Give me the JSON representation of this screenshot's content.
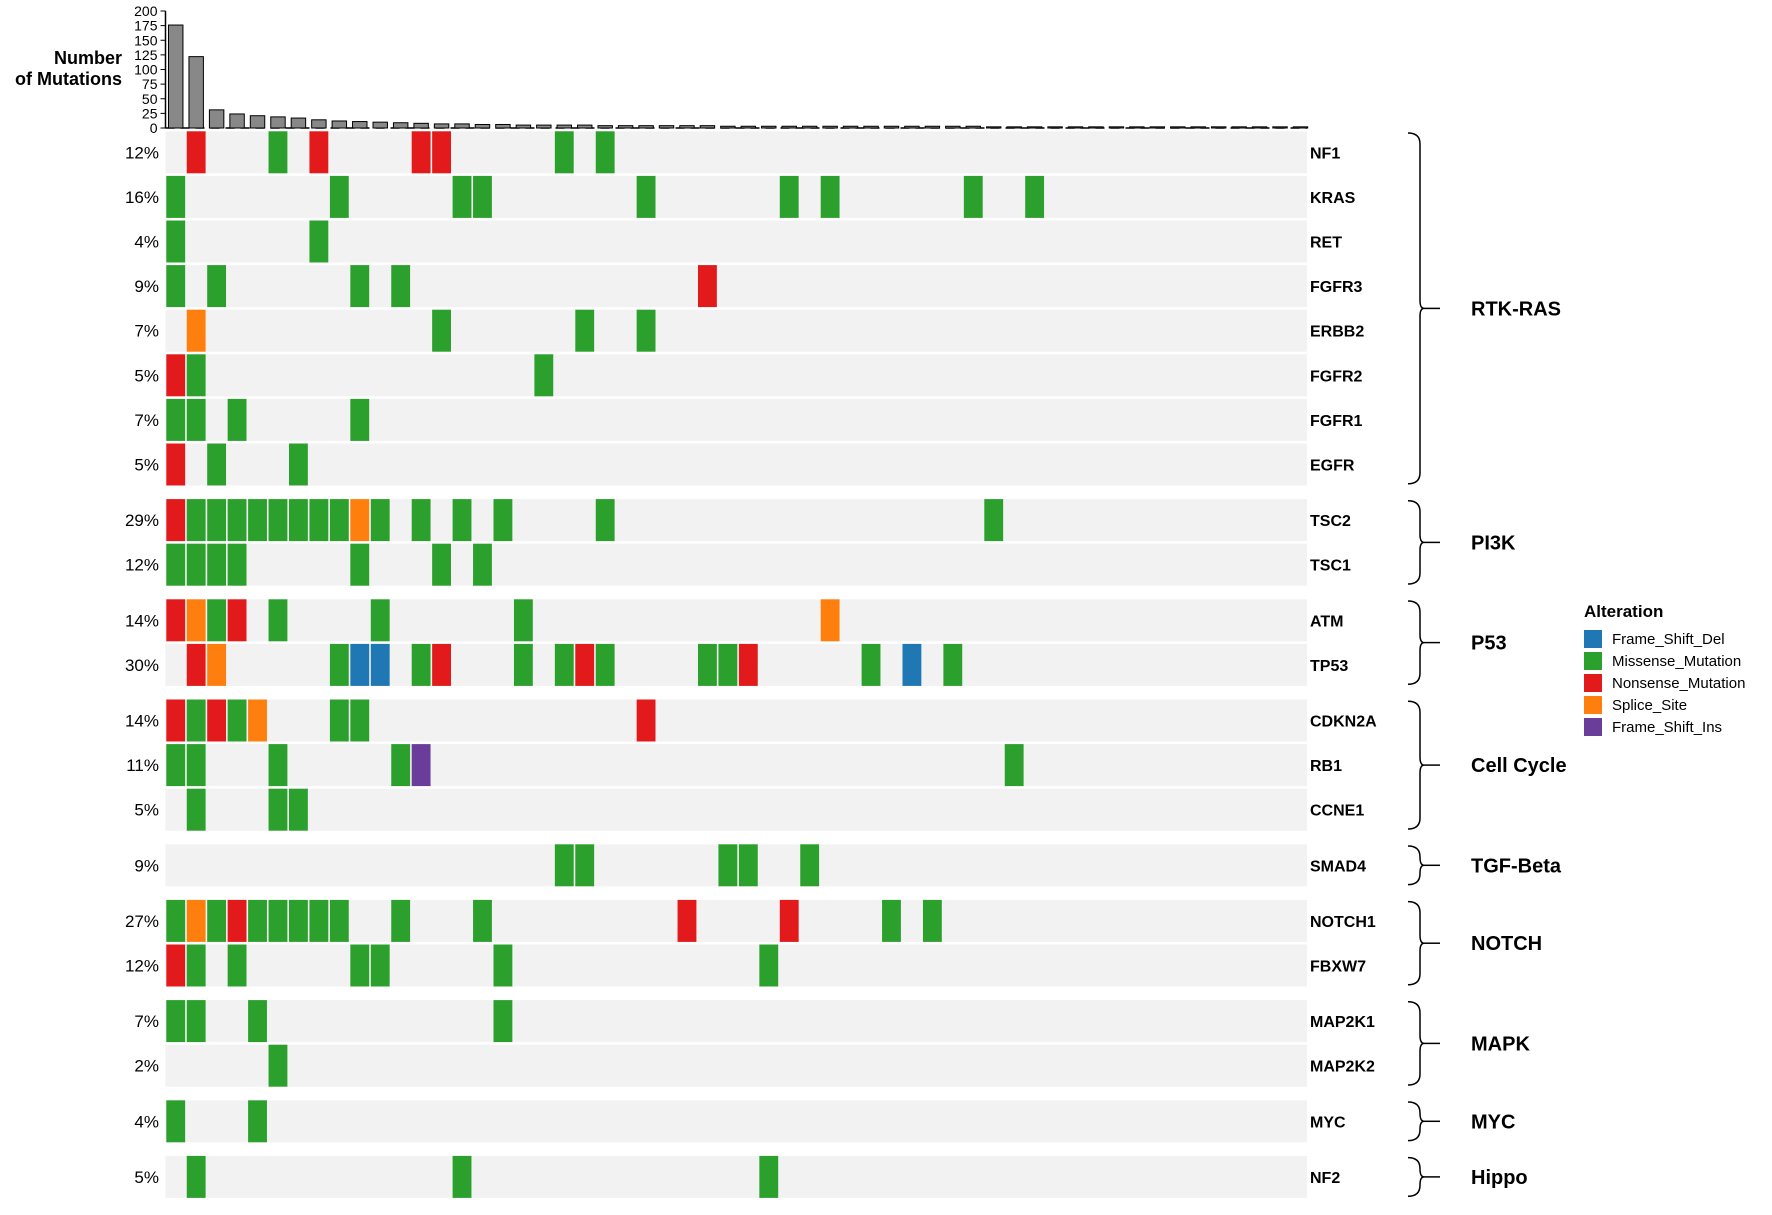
{
  "chart_data": {
    "type": "heatmap",
    "title": "",
    "top_barplot": {
      "ylabel_line1": "Number",
      "ylabel_line2": "of Mutations",
      "yticks": [
        "200",
        "175",
        "150",
        "125",
        "100",
        "75",
        "50",
        "25",
        "0"
      ],
      "ylim": [
        0,
        200
      ],
      "values": [
        176,
        122,
        31,
        24,
        21,
        19,
        17,
        14,
        12,
        11,
        10,
        9,
        8,
        7,
        7,
        6,
        6,
        5,
        5,
        5,
        5,
        4,
        4,
        4,
        4,
        4,
        4,
        3,
        3,
        3,
        3,
        3,
        3,
        3,
        3,
        3,
        3,
        3,
        3,
        3,
        2,
        2,
        2,
        2,
        2,
        2,
        2,
        2,
        2,
        2,
        2,
        2,
        2,
        2,
        2,
        2
      ]
    },
    "n_samples": 56,
    "groups": [
      {
        "name": "RTK-RAS",
        "genes": [
          {
            "gene": "NF1",
            "pct": "12%",
            "alterations": [
              [
                1,
                "Nonsense_Mutation"
              ],
              [
                5,
                "Missense_Mutation"
              ],
              [
                7,
                "Nonsense_Mutation"
              ],
              [
                12,
                "Nonsense_Mutation"
              ],
              [
                13,
                "Nonsense_Mutation"
              ],
              [
                19,
                "Missense_Mutation"
              ],
              [
                21,
                "Missense_Mutation"
              ]
            ]
          },
          {
            "gene": "KRAS",
            "pct": "16%",
            "alterations": [
              [
                0,
                "Missense_Mutation"
              ],
              [
                8,
                "Missense_Mutation"
              ],
              [
                14,
                "Missense_Mutation"
              ],
              [
                15,
                "Missense_Mutation"
              ],
              [
                23,
                "Missense_Mutation"
              ],
              [
                30,
                "Missense_Mutation"
              ],
              [
                32,
                "Missense_Mutation"
              ],
              [
                39,
                "Missense_Mutation"
              ],
              [
                42,
                "Missense_Mutation"
              ]
            ]
          },
          {
            "gene": "RET",
            "pct": "4%",
            "alterations": [
              [
                0,
                "Missense_Mutation"
              ],
              [
                7,
                "Missense_Mutation"
              ]
            ]
          },
          {
            "gene": "FGFR3",
            "pct": "9%",
            "alterations": [
              [
                0,
                "Missense_Mutation"
              ],
              [
                2,
                "Missense_Mutation"
              ],
              [
                9,
                "Missense_Mutation"
              ],
              [
                11,
                "Missense_Mutation"
              ],
              [
                26,
                "Nonsense_Mutation"
              ]
            ]
          },
          {
            "gene": "ERBB2",
            "pct": "7%",
            "alterations": [
              [
                1,
                "Splice_Site"
              ],
              [
                13,
                "Missense_Mutation"
              ],
              [
                20,
                "Missense_Mutation"
              ],
              [
                23,
                "Missense_Mutation"
              ]
            ]
          },
          {
            "gene": "FGFR2",
            "pct": "5%",
            "alterations": [
              [
                0,
                "Nonsense_Mutation"
              ],
              [
                1,
                "Missense_Mutation"
              ],
              [
                18,
                "Missense_Mutation"
              ]
            ]
          },
          {
            "gene": "FGFR1",
            "pct": "7%",
            "alterations": [
              [
                0,
                "Missense_Mutation"
              ],
              [
                1,
                "Missense_Mutation"
              ],
              [
                3,
                "Missense_Mutation"
              ],
              [
                9,
                "Missense_Mutation"
              ]
            ]
          },
          {
            "gene": "EGFR",
            "pct": "5%",
            "alterations": [
              [
                0,
                "Nonsense_Mutation"
              ],
              [
                2,
                "Missense_Mutation"
              ],
              [
                6,
                "Missense_Mutation"
              ]
            ]
          }
        ]
      },
      {
        "name": "PI3K",
        "genes": [
          {
            "gene": "TSC2",
            "pct": "29%",
            "alterations": [
              [
                0,
                "Nonsense_Mutation"
              ],
              [
                1,
                "Missense_Mutation"
              ],
              [
                2,
                "Missense_Mutation"
              ],
              [
                3,
                "Missense_Mutation"
              ],
              [
                4,
                "Missense_Mutation"
              ],
              [
                5,
                "Missense_Mutation"
              ],
              [
                6,
                "Missense_Mutation"
              ],
              [
                7,
                "Missense_Mutation"
              ],
              [
                8,
                "Missense_Mutation"
              ],
              [
                9,
                "Splice_Site"
              ],
              [
                10,
                "Missense_Mutation"
              ],
              [
                12,
                "Missense_Mutation"
              ],
              [
                14,
                "Missense_Mutation"
              ],
              [
                16,
                "Missense_Mutation"
              ],
              [
                21,
                "Missense_Mutation"
              ],
              [
                40,
                "Missense_Mutation"
              ]
            ]
          },
          {
            "gene": "TSC1",
            "pct": "12%",
            "alterations": [
              [
                0,
                "Missense_Mutation"
              ],
              [
                1,
                "Missense_Mutation"
              ],
              [
                2,
                "Missense_Mutation"
              ],
              [
                3,
                "Missense_Mutation"
              ],
              [
                9,
                "Missense_Mutation"
              ],
              [
                13,
                "Missense_Mutation"
              ],
              [
                15,
                "Missense_Mutation"
              ]
            ]
          }
        ]
      },
      {
        "name": "P53",
        "genes": [
          {
            "gene": "ATM",
            "pct": "14%",
            "alterations": [
              [
                0,
                "Nonsense_Mutation"
              ],
              [
                1,
                "Splice_Site"
              ],
              [
                2,
                "Missense_Mutation"
              ],
              [
                3,
                "Nonsense_Mutation"
              ],
              [
                5,
                "Missense_Mutation"
              ],
              [
                10,
                "Missense_Mutation"
              ],
              [
                17,
                "Missense_Mutation"
              ],
              [
                32,
                "Splice_Site"
              ]
            ]
          },
          {
            "gene": "TP53",
            "pct": "30%",
            "alterations": [
              [
                1,
                "Nonsense_Mutation"
              ],
              [
                2,
                "Splice_Site"
              ],
              [
                8,
                "Missense_Mutation"
              ],
              [
                9,
                "Frame_Shift_Del"
              ],
              [
                10,
                "Frame_Shift_Del"
              ],
              [
                12,
                "Missense_Mutation"
              ],
              [
                13,
                "Nonsense_Mutation"
              ],
              [
                17,
                "Missense_Mutation"
              ],
              [
                19,
                "Missense_Mutation"
              ],
              [
                20,
                "Nonsense_Mutation"
              ],
              [
                21,
                "Missense_Mutation"
              ],
              [
                26,
                "Missense_Mutation"
              ],
              [
                27,
                "Missense_Mutation"
              ],
              [
                28,
                "Nonsense_Mutation"
              ],
              [
                34,
                "Missense_Mutation"
              ],
              [
                36,
                "Frame_Shift_Del"
              ],
              [
                38,
                "Missense_Mutation"
              ]
            ]
          }
        ]
      },
      {
        "name": "Cell Cycle",
        "genes": [
          {
            "gene": "CDKN2A",
            "pct": "14%",
            "alterations": [
              [
                0,
                "Nonsense_Mutation"
              ],
              [
                1,
                "Missense_Mutation"
              ],
              [
                2,
                "Nonsense_Mutation"
              ],
              [
                3,
                "Missense_Mutation"
              ],
              [
                4,
                "Splice_Site"
              ],
              [
                8,
                "Missense_Mutation"
              ],
              [
                9,
                "Missense_Mutation"
              ],
              [
                23,
                "Nonsense_Mutation"
              ]
            ]
          },
          {
            "gene": "RB1",
            "pct": "11%",
            "alterations": [
              [
                0,
                "Missense_Mutation"
              ],
              [
                1,
                "Missense_Mutation"
              ],
              [
                5,
                "Missense_Mutation"
              ],
              [
                11,
                "Missense_Mutation"
              ],
              [
                12,
                "Frame_Shift_Ins"
              ],
              [
                41,
                "Missense_Mutation"
              ]
            ]
          },
          {
            "gene": "CCNE1",
            "pct": "5%",
            "alterations": [
              [
                1,
                "Missense_Mutation"
              ],
              [
                5,
                "Missense_Mutation"
              ],
              [
                6,
                "Missense_Mutation"
              ]
            ]
          }
        ]
      },
      {
        "name": "TGF-Beta",
        "genes": [
          {
            "gene": "SMAD4",
            "pct": "9%",
            "alterations": [
              [
                19,
                "Missense_Mutation"
              ],
              [
                20,
                "Missense_Mutation"
              ],
              [
                27,
                "Missense_Mutation"
              ],
              [
                28,
                "Missense_Mutation"
              ],
              [
                31,
                "Missense_Mutation"
              ]
            ]
          }
        ]
      },
      {
        "name": "NOTCH",
        "genes": [
          {
            "gene": "NOTCH1",
            "pct": "27%",
            "alterations": [
              [
                0,
                "Missense_Mutation"
              ],
              [
                1,
                "Splice_Site"
              ],
              [
                2,
                "Missense_Mutation"
              ],
              [
                3,
                "Nonsense_Mutation"
              ],
              [
                4,
                "Missense_Mutation"
              ],
              [
                5,
                "Missense_Mutation"
              ],
              [
                6,
                "Missense_Mutation"
              ],
              [
                7,
                "Missense_Mutation"
              ],
              [
                8,
                "Missense_Mutation"
              ],
              [
                11,
                "Missense_Mutation"
              ],
              [
                15,
                "Missense_Mutation"
              ],
              [
                25,
                "Nonsense_Mutation"
              ],
              [
                30,
                "Nonsense_Mutation"
              ],
              [
                35,
                "Missense_Mutation"
              ],
              [
                37,
                "Missense_Mutation"
              ]
            ]
          },
          {
            "gene": "FBXW7",
            "pct": "12%",
            "alterations": [
              [
                0,
                "Nonsense_Mutation"
              ],
              [
                1,
                "Missense_Mutation"
              ],
              [
                3,
                "Missense_Mutation"
              ],
              [
                9,
                "Missense_Mutation"
              ],
              [
                10,
                "Missense_Mutation"
              ],
              [
                16,
                "Missense_Mutation"
              ],
              [
                29,
                "Missense_Mutation"
              ]
            ]
          }
        ]
      },
      {
        "name": "MAPK",
        "genes": [
          {
            "gene": "MAP2K1",
            "pct": "7%",
            "alterations": [
              [
                0,
                "Missense_Mutation"
              ],
              [
                1,
                "Missense_Mutation"
              ],
              [
                4,
                "Missense_Mutation"
              ],
              [
                16,
                "Missense_Mutation"
              ]
            ]
          },
          {
            "gene": "MAP2K2",
            "pct": "2%",
            "alterations": [
              [
                5,
                "Missense_Mutation"
              ]
            ]
          }
        ]
      },
      {
        "name": "MYC",
        "genes": [
          {
            "gene": "MYC",
            "pct": "4%",
            "alterations": [
              [
                0,
                "Missense_Mutation"
              ],
              [
                4,
                "Missense_Mutation"
              ]
            ]
          }
        ]
      },
      {
        "name": "Hippo",
        "genes": [
          {
            "gene": "NF2",
            "pct": "5%",
            "alterations": [
              [
                1,
                "Missense_Mutation"
              ],
              [
                14,
                "Missense_Mutation"
              ],
              [
                29,
                "Missense_Mutation"
              ]
            ]
          }
        ]
      }
    ],
    "legend": {
      "title": "Alteration",
      "position": "right",
      "items": [
        {
          "name": "Frame_Shift_Del",
          "color": "#1f77b4"
        },
        {
          "name": "Missense_Mutation",
          "color": "#2ca02c"
        },
        {
          "name": "Nonsense_Mutation",
          "color": "#e31a1c"
        },
        {
          "name": "Splice_Site",
          "color": "#ff7f0e"
        },
        {
          "name": "Frame_Shift_Ins",
          "color": "#6a3d9a"
        }
      ]
    },
    "colors": {
      "track_background": "#f2f2f2",
      "bar_fill": "#888888",
      "text": "#000000"
    }
  }
}
